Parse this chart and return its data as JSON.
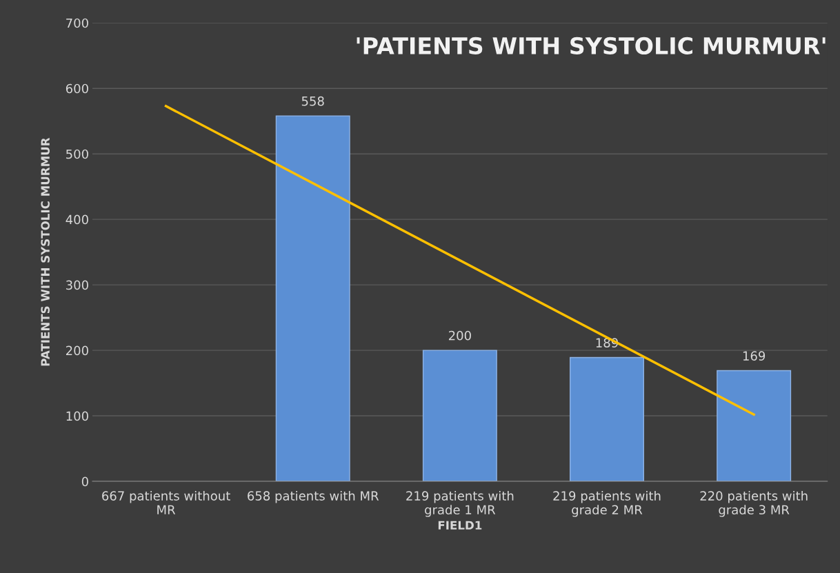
{
  "chart_data": {
    "type": "bar",
    "title": "'PATIENTS WITH SYSTOLIC MURMUR'",
    "xlabel": "FIELD1",
    "ylabel": "PATIENTS WITH SYSTOLIC MURMUR",
    "categories": [
      "667 patients without MR",
      "658 patients with MR",
      "219 patients with grade 1 MR",
      "219 patients with grade 2 MR",
      "220 patients with grade 3 MR"
    ],
    "series": [
      {
        "color": "#5b8fd4",
        "values": [
          null,
          558,
          200,
          189,
          169
        ],
        "value_labels": [
          null,
          "558",
          "200",
          "189",
          "169"
        ]
      },
      {
        "type": "line",
        "color": "#ffc000",
        "x": [
          "667 patients without MR",
          "220 patients with grade 3 MR"
        ],
        "values": [
          573,
          102
        ]
      }
    ],
    "ylim": [
      0,
      700
    ],
    "yticks": [
      0,
      100,
      200,
      300,
      400,
      500,
      600,
      700
    ],
    "grid": "y",
    "legend": false
  }
}
